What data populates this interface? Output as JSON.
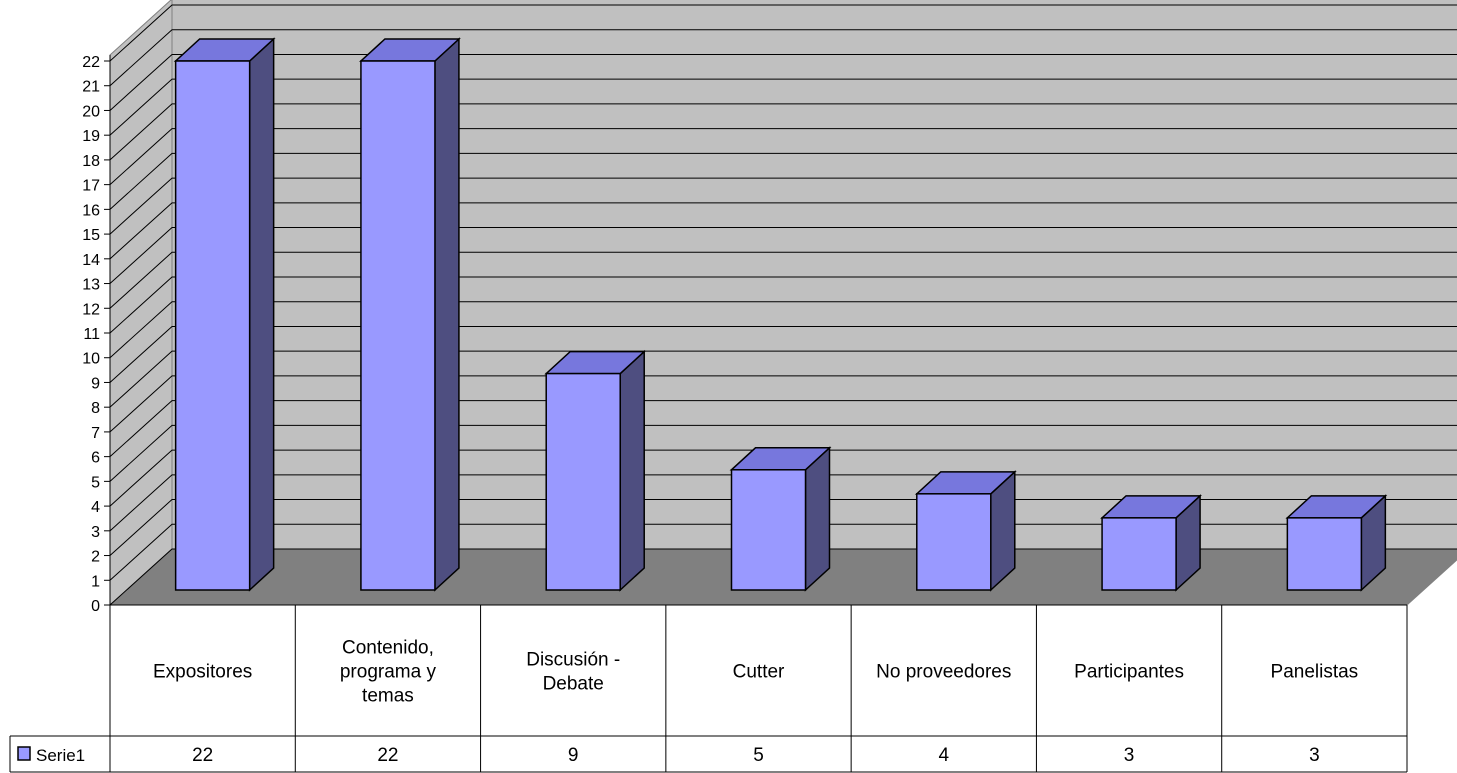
{
  "chart_data": {
    "type": "bar",
    "style": "3d-column",
    "categories": [
      [
        "Expositores"
      ],
      [
        "Contenido,",
        "programa y",
        "temas"
      ],
      [
        "Discusión -",
        "Debate"
      ],
      [
        "Cutter"
      ],
      [
        "No proveedores"
      ],
      [
        "Participantes"
      ],
      [
        "Panelistas"
      ]
    ],
    "series": [
      {
        "name": "Serie1",
        "values": [
          22,
          22,
          9,
          5,
          4,
          3,
          3
        ]
      }
    ],
    "y_ticks": [
      0,
      1,
      2,
      3,
      4,
      5,
      6,
      7,
      8,
      9,
      10,
      11,
      12,
      13,
      14,
      15,
      16,
      17,
      18,
      19,
      20,
      21,
      22
    ],
    "ylim": [
      0,
      22
    ],
    "grid": true,
    "legend": "data-table-left",
    "data_table": true,
    "colors": {
      "bar_front": "#9999ff",
      "bar_top": "#7777dd",
      "bar_side": "#4e4e80",
      "wall": "#c0c0c0",
      "floor": "#808080",
      "grid": "#000000"
    }
  }
}
